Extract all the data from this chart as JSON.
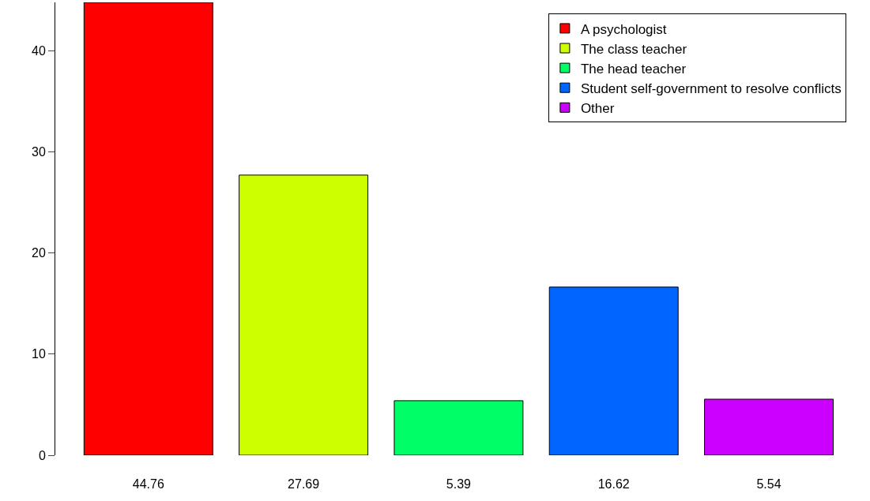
{
  "chart_data": {
    "type": "bar",
    "categories": [
      "44.76",
      "27.69",
      "5.39",
      "16.62",
      "5.54"
    ],
    "series": [
      {
        "name": "A psychologist",
        "color": "#ff0000",
        "values": [
          44.76,
          null,
          null,
          null,
          null
        ]
      },
      {
        "name": "The class teacher",
        "color": "#ccff00",
        "values": [
          null,
          27.69,
          null,
          null,
          null
        ]
      },
      {
        "name": "The head teacher",
        "color": "#00ff66",
        "values": [
          null,
          null,
          5.39,
          null,
          null
        ]
      },
      {
        "name": "Student self-government to resolve conflicts",
        "color": "#0066ff",
        "values": [
          null,
          null,
          null,
          16.62,
          null
        ]
      },
      {
        "name": "Other",
        "color": "#cc00ff",
        "values": [
          null,
          null,
          null,
          null,
          5.54
        ]
      }
    ],
    "ylim": [
      0,
      44.76
    ],
    "yticks": [
      0,
      10,
      20,
      30,
      40
    ],
    "legend": "top right"
  }
}
